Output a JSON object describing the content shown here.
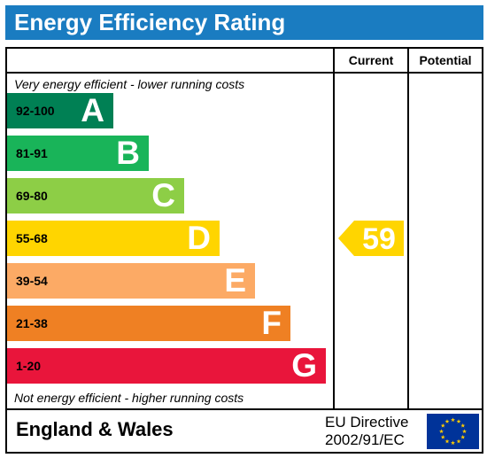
{
  "header": {
    "title": "Energy Efficiency Rating"
  },
  "columns": {
    "current": "Current",
    "potential": "Potential"
  },
  "captions": {
    "top": "Very energy efficient - lower running costs",
    "bottom": "Not energy efficient - higher running costs"
  },
  "chart_data": {
    "type": "bar",
    "categories": [
      "A",
      "B",
      "C",
      "D",
      "E",
      "F",
      "G"
    ],
    "ranges": [
      "92-100",
      "81-91",
      "69-80",
      "55-68",
      "39-54",
      "21-38",
      "1-20"
    ],
    "colors": [
      "#008054",
      "#19b459",
      "#8dce46",
      "#ffd500",
      "#fcaa65",
      "#ef8023",
      "#e9153b"
    ],
    "current": {
      "value": 59,
      "band": "D",
      "color": "#ffd500"
    },
    "potential": null
  },
  "footer": {
    "region": "England & Wales",
    "directive_line1": "EU Directive",
    "directive_line2": "2002/91/EC",
    "flag_icon": "eu-flag-icon",
    "flag_color": "#003399",
    "star_color": "#ffcc00"
  }
}
